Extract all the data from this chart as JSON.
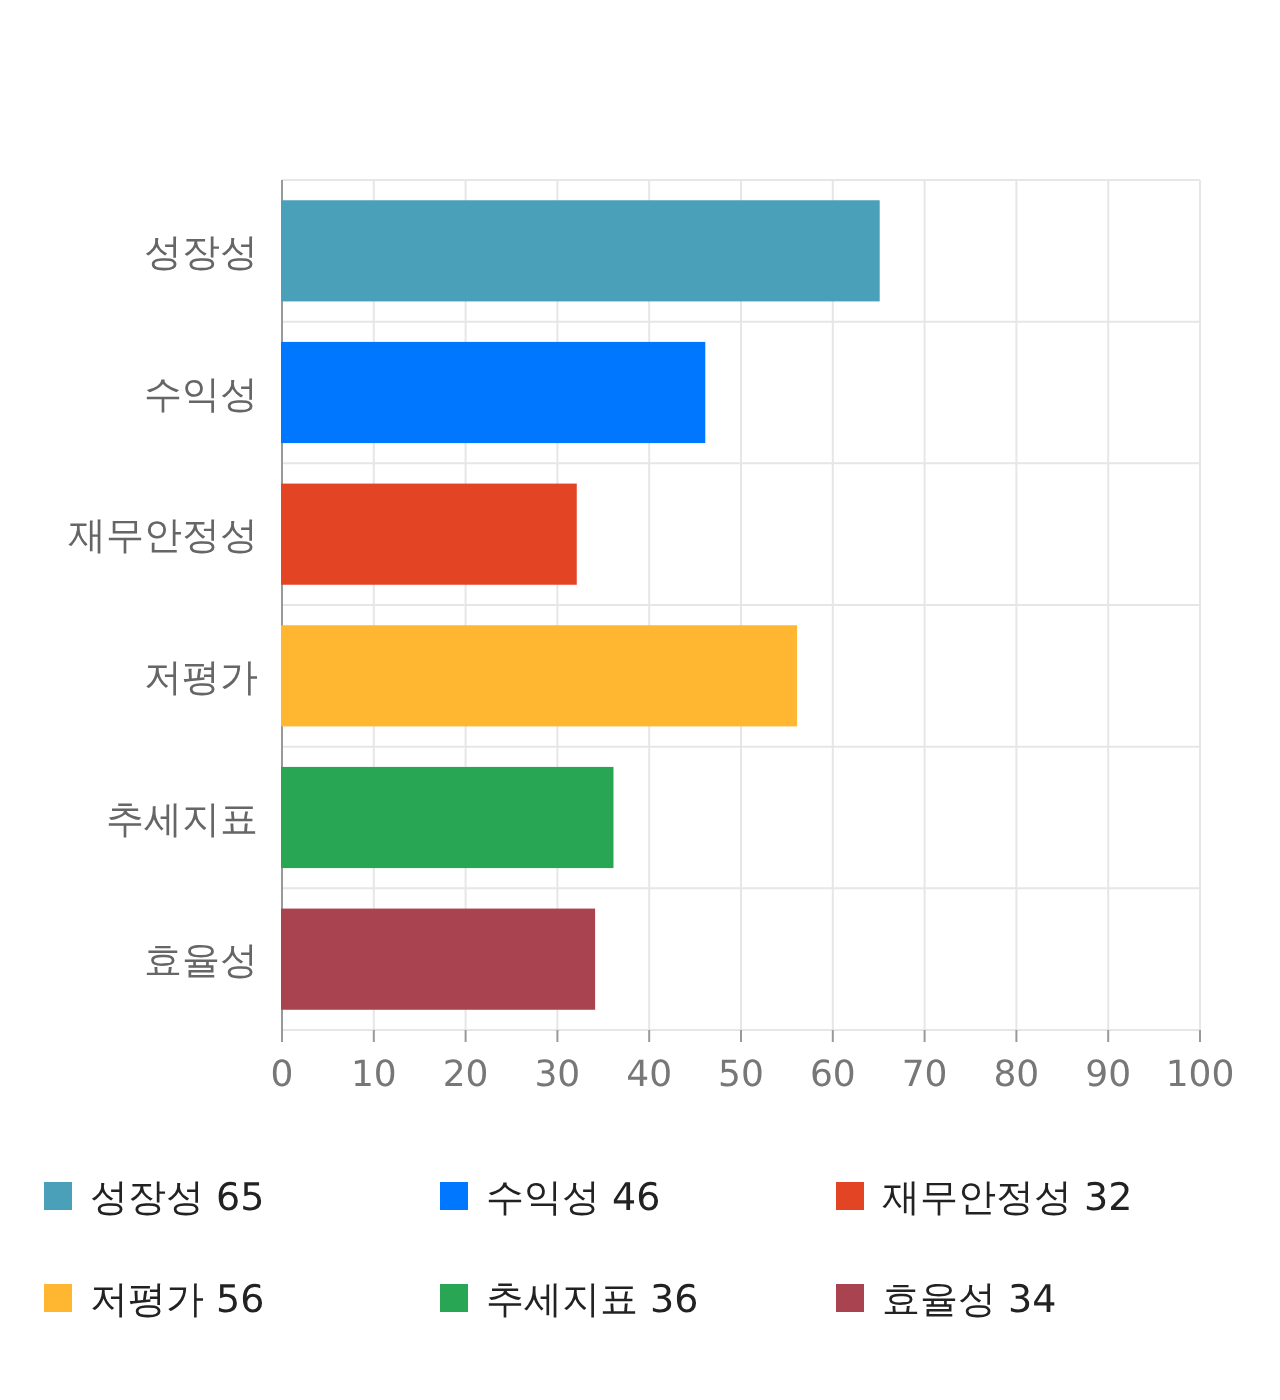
{
  "chart_data": {
    "type": "bar",
    "orientation": "horizontal",
    "stacked": true,
    "categories": [
      "성장성",
      "수익성",
      "재무안정성",
      "저평가",
      "추세지표",
      "효율성"
    ],
    "series": [
      {
        "name": "성장성 65",
        "color": "#4aa0b9",
        "values": [
          65,
          null,
          null,
          null,
          null,
          null
        ]
      },
      {
        "name": "수익성 46",
        "color": "#0077ff",
        "values": [
          null,
          46,
          null,
          null,
          null,
          null
        ]
      },
      {
        "name": "재무안정성 32",
        "color": "#e34424",
        "values": [
          null,
          null,
          32,
          null,
          null,
          null
        ]
      },
      {
        "name": "저평가 56",
        "color": "#ffb732",
        "values": [
          null,
          null,
          null,
          56,
          null,
          null
        ]
      },
      {
        "name": "추세지표 36",
        "color": "#28a654",
        "values": [
          null,
          null,
          null,
          null,
          36,
          null
        ]
      },
      {
        "name": "효율성 34",
        "color": "#a8434f",
        "values": [
          null,
          null,
          null,
          null,
          null,
          34
        ]
      }
    ],
    "xlim": [
      0,
      100
    ],
    "xticks": [
      0,
      10,
      20,
      30,
      40,
      50,
      60,
      70,
      80,
      90,
      100
    ],
    "grid": true,
    "legend": "bottom"
  }
}
